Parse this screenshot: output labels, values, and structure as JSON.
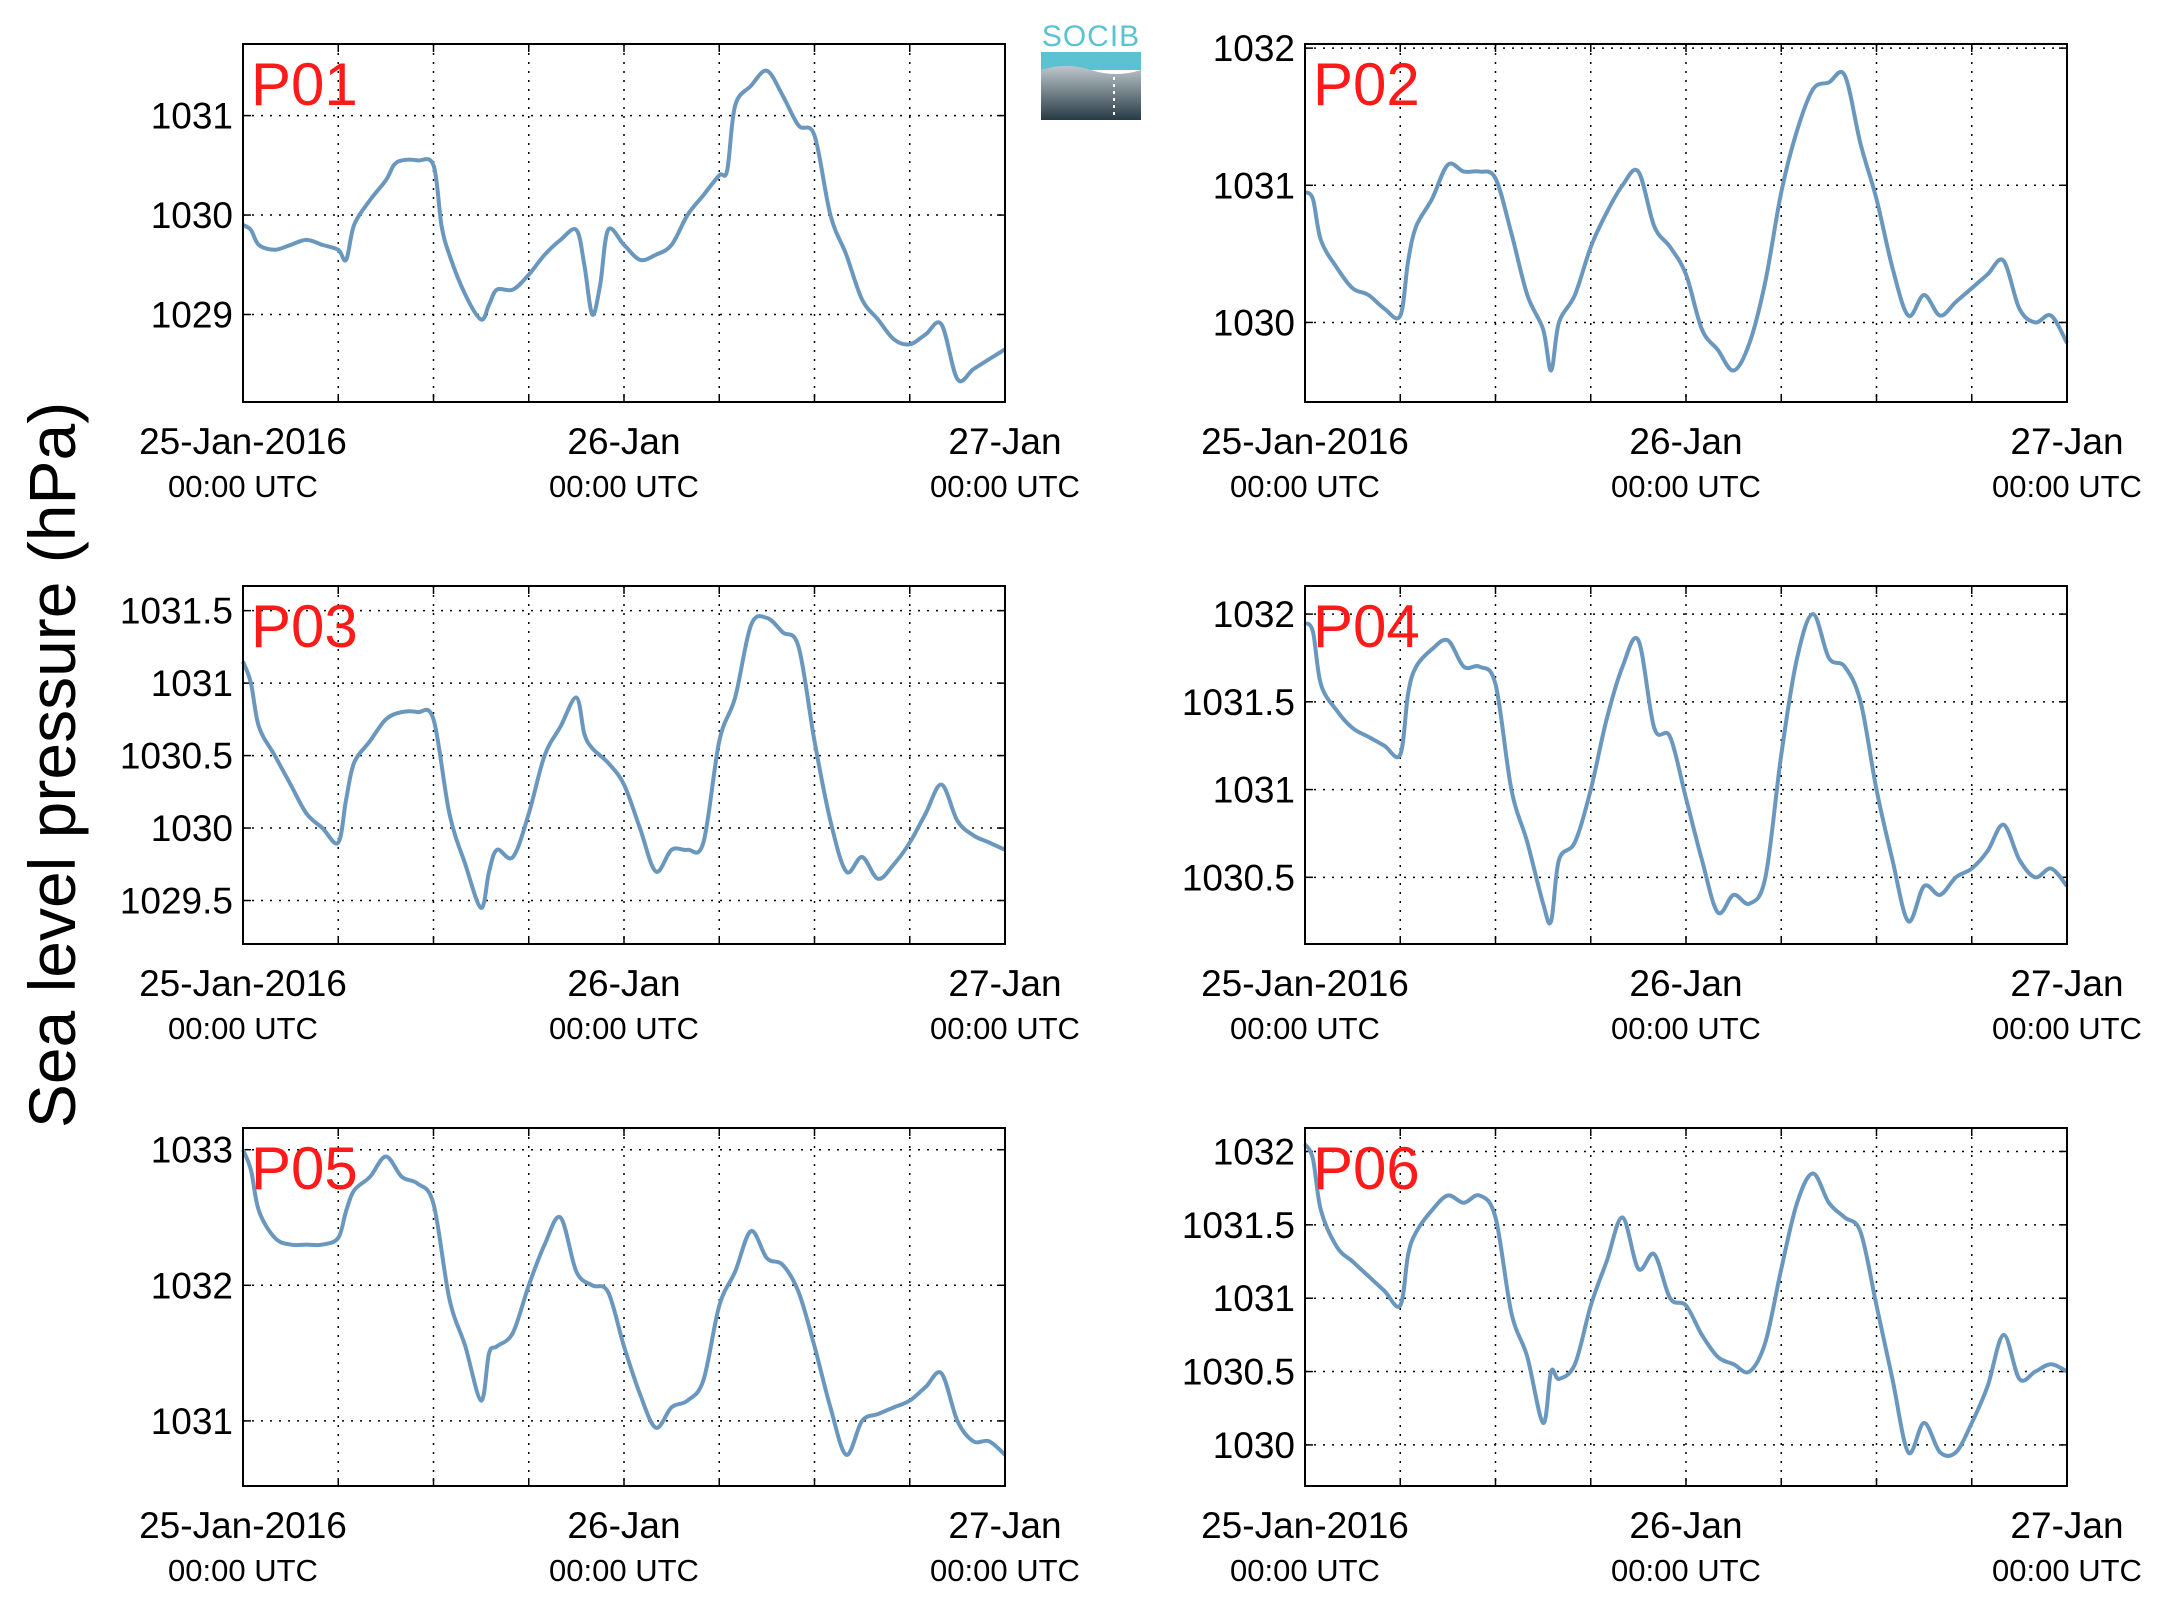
{
  "figure": {
    "ylabel": "Sea level pressure (hPa)",
    "logo_text": "SOCIB",
    "series_color": "#6a97bd",
    "panel_label_color": "#ff1a1a"
  },
  "chart_data": [
    {
      "type": "line",
      "panel_label": "P01",
      "xlim": [
        0,
        48
      ],
      "ylim": [
        1028.12,
        1031.72
      ],
      "yticks": [
        1029,
        1030,
        1031
      ],
      "ytick_labels": [
        "1029",
        "1030",
        "1031"
      ],
      "xticks": [
        0,
        24,
        48
      ],
      "xtick_labels": [
        "25-Jan-2016",
        "26-Jan",
        "27-Jan"
      ],
      "xtick_sublabels": [
        "00:00 UTC",
        "00:00 UTC",
        "00:00 UTC"
      ],
      "xgrid": [
        0,
        6,
        12,
        18,
        24,
        30,
        36,
        42,
        48
      ],
      "series": [
        {
          "x": [
            0,
            0.5,
            1,
            2,
            3,
            4,
            5,
            6,
            6.5,
            7,
            8,
            9,
            9.5,
            10,
            11,
            12,
            12.5,
            13,
            14,
            15,
            15.5,
            16,
            17,
            18,
            19,
            20,
            21,
            21.5,
            22,
            22.5,
            23,
            24,
            25,
            26,
            27,
            28,
            29,
            30,
            30.5,
            31,
            32,
            33,
            34,
            35,
            36,
            37,
            38,
            39,
            40,
            41,
            42,
            43,
            44,
            45,
            46,
            47,
            48
          ],
          "y": [
            1029.9,
            1029.85,
            1029.7,
            1029.65,
            1029.7,
            1029.75,
            1029.7,
            1029.65,
            1029.55,
            1029.9,
            1030.15,
            1030.35,
            1030.5,
            1030.55,
            1030.55,
            1030.5,
            1029.9,
            1029.6,
            1029.2,
            1028.95,
            1029.1,
            1029.25,
            1029.25,
            1029.4,
            1029.6,
            1029.75,
            1029.85,
            1029.5,
            1029.0,
            1029.3,
            1029.85,
            1029.7,
            1029.55,
            1029.6,
            1029.7,
            1030.0,
            1030.2,
            1030.4,
            1030.45,
            1031.1,
            1031.3,
            1031.45,
            1031.2,
            1030.9,
            1030.8,
            1030.0,
            1029.6,
            1029.15,
            1028.95,
            1028.75,
            1028.7,
            1028.8,
            1028.9,
            1028.35,
            1028.45,
            1028.55,
            1028.65
          ]
        }
      ]
    },
    {
      "type": "line",
      "panel_label": "P02",
      "xlim": [
        0,
        48
      ],
      "ylim": [
        1029.42,
        1032.03
      ],
      "yticks": [
        1030,
        1031,
        1032
      ],
      "ytick_labels": [
        "1030",
        "1031",
        "1032"
      ],
      "xticks": [
        0,
        24,
        48
      ],
      "xtick_labels": [
        "25-Jan-2016",
        "26-Jan",
        "27-Jan"
      ],
      "xtick_sublabels": [
        "00:00 UTC",
        "00:00 UTC",
        "00:00 UTC"
      ],
      "xgrid": [
        0,
        6,
        12,
        18,
        24,
        30,
        36,
        42,
        48
      ],
      "series": [
        {
          "x": [
            0,
            0.5,
            1,
            2,
            3,
            4,
            5,
            6,
            6.5,
            7,
            8,
            9,
            10,
            11,
            12,
            13,
            14,
            15,
            15.5,
            16,
            17,
            18,
            19,
            20,
            21,
            22,
            23,
            24,
            25,
            26,
            27,
            28,
            29,
            30,
            31,
            32,
            33,
            34,
            35,
            36,
            37,
            38,
            39,
            40,
            41,
            42,
            43,
            44,
            45,
            46,
            47,
            48
          ],
          "y": [
            1030.95,
            1030.9,
            1030.6,
            1030.4,
            1030.25,
            1030.2,
            1030.1,
            1030.05,
            1030.45,
            1030.7,
            1030.9,
            1031.15,
            1031.1,
            1031.1,
            1031.05,
            1030.65,
            1030.2,
            1029.95,
            1029.65,
            1030.0,
            1030.2,
            1030.55,
            1030.8,
            1031.0,
            1031.1,
            1030.7,
            1030.55,
            1030.35,
            1029.95,
            1029.8,
            1029.65,
            1029.85,
            1030.3,
            1030.95,
            1031.4,
            1031.7,
            1031.75,
            1031.8,
            1031.3,
            1030.9,
            1030.4,
            1030.05,
            1030.2,
            1030.05,
            1030.15,
            1030.25,
            1030.35,
            1030.45,
            1030.1,
            1030.0,
            1030.05,
            1029.85
          ]
        }
      ]
    },
    {
      "type": "line",
      "panel_label": "P03",
      "xlim": [
        0,
        48
      ],
      "ylim": [
        1029.2,
        1031.67
      ],
      "yticks": [
        1029.5,
        1030,
        1030.5,
        1031,
        1031.5
      ],
      "ytick_labels": [
        "1029.5",
        "1030",
        "1030.5",
        "1031",
        "1031.5"
      ],
      "xticks": [
        0,
        24,
        48
      ],
      "xtick_labels": [
        "25-Jan-2016",
        "26-Jan",
        "27-Jan"
      ],
      "xtick_sublabels": [
        "00:00 UTC",
        "00:00 UTC",
        "00:00 UTC"
      ],
      "xgrid": [
        0,
        6,
        12,
        18,
        24,
        30,
        36,
        42,
        48
      ],
      "series": [
        {
          "x": [
            0,
            0.5,
            1,
            2,
            3,
            4,
            5,
            6,
            6.5,
            7,
            8,
            9,
            10,
            11,
            12,
            13,
            14,
            15,
            15.5,
            16,
            17,
            18,
            19,
            20,
            21,
            21.5,
            22,
            23,
            24,
            25,
            26,
            27,
            28,
            29,
            30,
            31,
            32,
            33,
            34,
            35,
            36,
            37,
            38,
            39,
            40,
            41,
            42,
            43,
            44,
            45,
            46,
            47,
            48
          ],
          "y": [
            1031.15,
            1031.0,
            1030.7,
            1030.5,
            1030.3,
            1030.1,
            1030.0,
            1029.9,
            1030.2,
            1030.45,
            1030.6,
            1030.75,
            1030.8,
            1030.8,
            1030.75,
            1030.1,
            1029.75,
            1029.45,
            1029.7,
            1029.85,
            1029.8,
            1030.1,
            1030.5,
            1030.7,
            1030.9,
            1030.65,
            1030.55,
            1030.45,
            1030.3,
            1030.0,
            1029.7,
            1029.85,
            1029.85,
            1029.9,
            1030.6,
            1030.9,
            1031.4,
            1031.45,
            1031.35,
            1031.25,
            1030.6,
            1030.05,
            1029.7,
            1029.8,
            1029.65,
            1029.75,
            1029.9,
            1030.1,
            1030.3,
            1030.05,
            1029.95,
            1029.9,
            1029.85
          ]
        }
      ]
    },
    {
      "type": "line",
      "panel_label": "P04",
      "xlim": [
        0,
        48
      ],
      "ylim": [
        1030.12,
        1032.16
      ],
      "yticks": [
        1030.5,
        1031,
        1031.5,
        1032
      ],
      "ytick_labels": [
        "1030.5",
        "1031",
        "1031.5",
        "1032"
      ],
      "xticks": [
        0,
        24,
        48
      ],
      "xtick_labels": [
        "25-Jan-2016",
        "26-Jan",
        "27-Jan"
      ],
      "xtick_sublabels": [
        "00:00 UTC",
        "00:00 UTC",
        "00:00 UTC"
      ],
      "xgrid": [
        0,
        6,
        12,
        18,
        24,
        30,
        36,
        42,
        48
      ],
      "series": [
        {
          "x": [
            0,
            0.5,
            1,
            2,
            3,
            4,
            5,
            6,
            6.5,
            7,
            8,
            9,
            10,
            11,
            12,
            13,
            14,
            15,
            15.5,
            16,
            17,
            18,
            19,
            20,
            21,
            22,
            23,
            24,
            25,
            26,
            27,
            28,
            29,
            30,
            31,
            32,
            33,
            34,
            35,
            36,
            37,
            38,
            39,
            40,
            41,
            42,
            43,
            44,
            45,
            46,
            47,
            48
          ],
          "y": [
            1031.95,
            1031.9,
            1031.6,
            1031.45,
            1031.35,
            1031.3,
            1031.25,
            1031.2,
            1031.55,
            1031.7,
            1031.8,
            1031.85,
            1031.7,
            1031.7,
            1031.6,
            1031.0,
            1030.7,
            1030.35,
            1030.25,
            1030.6,
            1030.7,
            1031.0,
            1031.4,
            1031.7,
            1031.85,
            1031.35,
            1031.3,
            1030.95,
            1030.6,
            1030.3,
            1030.4,
            1030.35,
            1030.5,
            1031.2,
            1031.75,
            1032.0,
            1031.75,
            1031.7,
            1031.5,
            1031.0,
            1030.6,
            1030.25,
            1030.45,
            1030.4,
            1030.5,
            1030.55,
            1030.65,
            1030.8,
            1030.6,
            1030.5,
            1030.55,
            1030.45
          ]
        }
      ]
    },
    {
      "type": "line",
      "panel_label": "P05",
      "xlim": [
        0,
        48
      ],
      "ylim": [
        1030.52,
        1033.16
      ],
      "yticks": [
        1031,
        1032,
        1033
      ],
      "ytick_labels": [
        "1031",
        "1032",
        "1033"
      ],
      "xticks": [
        0,
        24,
        48
      ],
      "xtick_labels": [
        "25-Jan-2016",
        "26-Jan",
        "27-Jan"
      ],
      "xtick_sublabels": [
        "00:00 UTC",
        "00:00 UTC",
        "00:00 UTC"
      ],
      "xgrid": [
        0,
        6,
        12,
        18,
        24,
        30,
        36,
        42,
        48
      ],
      "series": [
        {
          "x": [
            0,
            0.5,
            1,
            2,
            3,
            4,
            5,
            6,
            6.5,
            7,
            8,
            9,
            10,
            11,
            12,
            13,
            14,
            15,
            15.5,
            16,
            17,
            18,
            19,
            20,
            21,
            22,
            23,
            24,
            25,
            26,
            27,
            28,
            29,
            30,
            31,
            32,
            33,
            34,
            35,
            36,
            37,
            38,
            39,
            40,
            41,
            42,
            43,
            44,
            45,
            46,
            47,
            48
          ],
          "y": [
            1033.0,
            1032.85,
            1032.55,
            1032.35,
            1032.3,
            1032.3,
            1032.3,
            1032.35,
            1032.55,
            1032.7,
            1032.8,
            1032.95,
            1032.8,
            1032.75,
            1032.6,
            1031.9,
            1031.55,
            1031.15,
            1031.5,
            1031.55,
            1031.65,
            1032.0,
            1032.3,
            1032.5,
            1032.1,
            1032.0,
            1031.95,
            1031.55,
            1031.2,
            1030.95,
            1031.1,
            1031.15,
            1031.3,
            1031.85,
            1032.1,
            1032.4,
            1032.2,
            1032.15,
            1031.95,
            1031.55,
            1031.1,
            1030.75,
            1031.0,
            1031.05,
            1031.1,
            1031.15,
            1031.25,
            1031.35,
            1031.0,
            1030.85,
            1030.85,
            1030.75
          ]
        }
      ]
    },
    {
      "type": "line",
      "panel_label": "P06",
      "xlim": [
        0,
        48
      ],
      "ylim": [
        1029.72,
        1032.16
      ],
      "yticks": [
        1030,
        1030.5,
        1031,
        1031.5,
        1032
      ],
      "ytick_labels": [
        "1030",
        "1030.5",
        "1031",
        "1031.5",
        "1032"
      ],
      "xticks": [
        0,
        24,
        48
      ],
      "xtick_labels": [
        "25-Jan-2016",
        "26-Jan",
        "27-Jan"
      ],
      "xtick_sublabels": [
        "00:00 UTC",
        "00:00 UTC",
        "00:00 UTC"
      ],
      "xgrid": [
        0,
        6,
        12,
        18,
        24,
        30,
        36,
        42,
        48
      ],
      "series": [
        {
          "x": [
            0,
            0.5,
            1,
            2,
            3,
            4,
            5,
            6,
            6.5,
            7,
            8,
            9,
            10,
            11,
            12,
            13,
            14,
            15,
            15.5,
            16,
            17,
            18,
            19,
            20,
            21,
            22,
            23,
            24,
            25,
            26,
            27,
            28,
            29,
            30,
            31,
            32,
            33,
            34,
            35,
            36,
            37,
            38,
            39,
            40,
            41,
            42,
            43,
            44,
            45,
            46,
            47,
            48
          ],
          "y": [
            1032.05,
            1031.95,
            1031.6,
            1031.35,
            1031.25,
            1031.15,
            1031.05,
            1030.95,
            1031.3,
            1031.45,
            1031.6,
            1031.7,
            1031.65,
            1031.7,
            1031.55,
            1030.9,
            1030.6,
            1030.15,
            1030.5,
            1030.45,
            1030.55,
            1030.95,
            1031.25,
            1031.55,
            1031.2,
            1031.3,
            1031.0,
            1030.95,
            1030.75,
            1030.6,
            1030.55,
            1030.5,
            1030.7,
            1031.2,
            1031.65,
            1031.85,
            1031.65,
            1031.55,
            1031.45,
            1030.95,
            1030.45,
            1029.95,
            1030.15,
            1029.95,
            1029.95,
            1030.15,
            1030.4,
            1030.75,
            1030.45,
            1030.5,
            1030.55,
            1030.5
          ]
        }
      ]
    }
  ]
}
